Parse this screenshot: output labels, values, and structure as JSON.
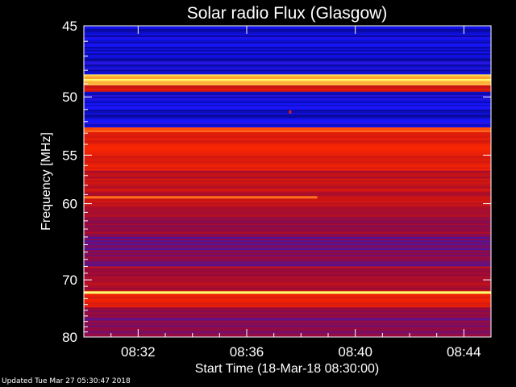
{
  "chart_data": {
    "type": "heatmap",
    "title": "Solar radio Flux (Glasgow)",
    "xlabel": "Start Time (18-Mar-18 08:30:00)",
    "ylabel": "Frequency [MHz]",
    "x_range_minutes": [
      0,
      15
    ],
    "xlim": [
      "08:30",
      "08:45"
    ],
    "ylim": [
      45,
      80
    ],
    "y_scale": "reciprocal",
    "x_ticks": [
      {
        "minute": 2,
        "label": "08:32"
      },
      {
        "minute": 6,
        "label": "08:36"
      },
      {
        "minute": 10,
        "label": "08:40"
      },
      {
        "minute": 14,
        "label": "08:44"
      }
    ],
    "y_ticks": [
      45,
      50,
      55,
      60,
      70,
      80
    ],
    "colors": {
      "low": "#1010ff",
      "mid": "#c01010",
      "high": "#ff3000",
      "peak": "#ffff60",
      "background": "#000000"
    },
    "bands": [
      {
        "freq_from": 45.0,
        "freq_to": 48.3,
        "level": 0.05
      },
      {
        "freq_from": 48.3,
        "freq_to": 49.1,
        "level": 0.92
      },
      {
        "freq_from": 49.1,
        "freq_to": 49.6,
        "level": 0.55
      },
      {
        "freq_from": 49.6,
        "freq_to": 52.5,
        "level": 0.06
      },
      {
        "freq_from": 52.5,
        "freq_to": 52.9,
        "level": 0.75
      },
      {
        "freq_from": 52.9,
        "freq_to": 56.5,
        "level": 0.6
      },
      {
        "freq_from": 56.5,
        "freq_to": 61.0,
        "level": 0.48
      },
      {
        "freq_from": 61.0,
        "freq_to": 64.0,
        "level": 0.38
      },
      {
        "freq_from": 64.0,
        "freq_to": 68.0,
        "level": 0.3
      },
      {
        "freq_from": 68.0,
        "freq_to": 71.8,
        "level": 0.42
      },
      {
        "freq_from": 71.8,
        "freq_to": 72.2,
        "level": 1.0
      },
      {
        "freq_from": 72.2,
        "freq_to": 74.5,
        "level": 0.58
      },
      {
        "freq_from": 74.5,
        "freq_to": 80.0,
        "level": 0.3
      }
    ],
    "features": [
      {
        "kind": "line",
        "freq": 59.3,
        "minute_from": 0,
        "minute_to": 8.6,
        "level": 0.8
      },
      {
        "kind": "spot",
        "freq": 51.2,
        "minute": 7.6,
        "level": 0.6
      }
    ]
  },
  "footer": {
    "updated": "Updated Tue Mar 27 05:30:47 2018"
  }
}
